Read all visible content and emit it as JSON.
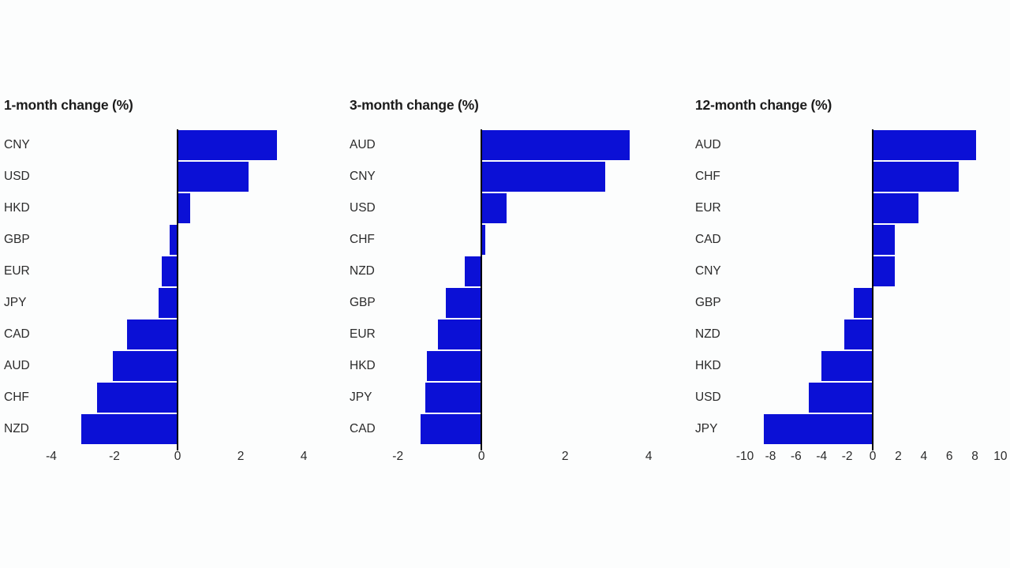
{
  "page": {
    "background_color": "#fcfdfd",
    "text_color": "#2b2b2b",
    "axis_line_color": "#000000"
  },
  "chart_data": [
    {
      "type": "bar",
      "orientation": "horizontal",
      "title": "1-month change (%)",
      "categories": [
        "CNY",
        "USD",
        "HKD",
        "GBP",
        "EUR",
        "JPY",
        "CAD",
        "AUD",
        "CHF",
        "NZD"
      ],
      "values": [
        3.15,
        2.25,
        0.4,
        -0.25,
        -0.5,
        -0.6,
        -1.6,
        -2.05,
        -2.55,
        -3.05
      ],
      "xlim": [
        -4.5,
        4.5
      ],
      "xticks": [
        -4,
        -2,
        0,
        2,
        4
      ],
      "bar_color": "#0b10d6",
      "grid": false,
      "legend": "none"
    },
    {
      "type": "bar",
      "orientation": "horizontal",
      "title": "3-month change (%)",
      "categories": [
        "AUD",
        "CNY",
        "USD",
        "CHF",
        "NZD",
        "GBP",
        "EUR",
        "HKD",
        "JPY",
        "CAD"
      ],
      "values": [
        3.55,
        2.95,
        0.6,
        0.1,
        -0.4,
        -0.85,
        -1.05,
        -1.3,
        -1.35,
        -1.45
      ],
      "xlim": [
        -2.4,
        4.6
      ],
      "xticks": [
        -2,
        0,
        2,
        4
      ],
      "bar_color": "#0b10d6",
      "grid": false,
      "legend": "none"
    },
    {
      "type": "bar",
      "orientation": "horizontal",
      "title": "12-month change (%)",
      "categories": [
        "AUD",
        "CHF",
        "EUR",
        "CAD",
        "CNY",
        "GBP",
        "NZD",
        "HKD",
        "USD",
        "JPY"
      ],
      "values": [
        8.1,
        6.75,
        3.6,
        1.7,
        1.7,
        -1.5,
        -2.2,
        -4.0,
        -5.0,
        -8.5
      ],
      "xlim": [
        -10.5,
        10.5
      ],
      "xticks": [
        -10,
        -8,
        -6,
        -4,
        -2,
        0,
        2,
        4,
        6,
        8,
        10
      ],
      "bar_color": "#0b10d6",
      "grid": false,
      "legend": "none"
    }
  ]
}
